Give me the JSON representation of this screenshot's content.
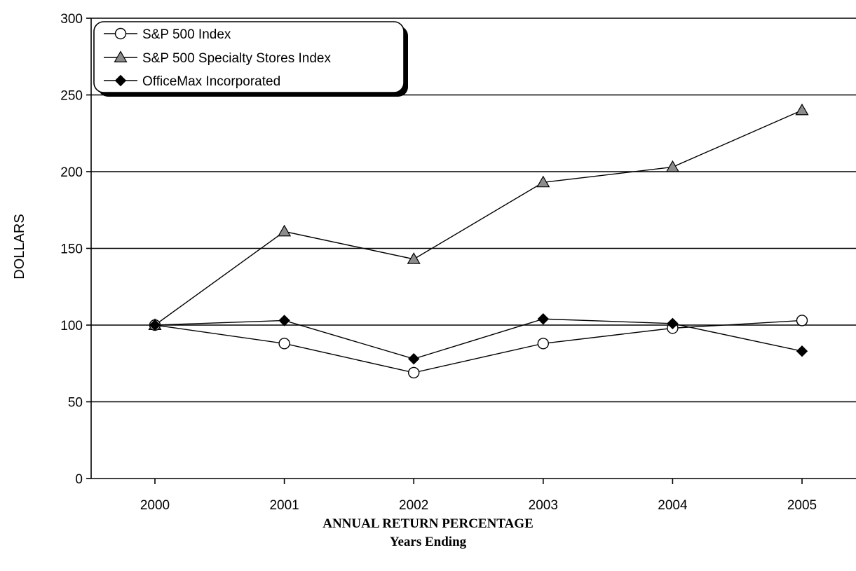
{
  "chart_data": {
    "type": "line",
    "x": [
      "2000",
      "2001",
      "2002",
      "2003",
      "2004",
      "2005"
    ],
    "ylabel": "DOLLARS",
    "xlabel": "ANNUAL RETURN PERCENTAGE",
    "subtitle": "Years Ending",
    "ylim": [
      0,
      300
    ],
    "yticks": [
      0,
      50,
      100,
      150,
      200,
      250,
      300
    ],
    "grid": "horizontal",
    "legend_position": "top-left",
    "series": [
      {
        "name": "S&P 500 Index",
        "marker": "open-circle",
        "values": [
          100,
          88,
          69,
          88,
          98,
          103
        ]
      },
      {
        "name": "S&P 500 Specialty Stores Index",
        "marker": "gray-triangle",
        "values": [
          100,
          161,
          143,
          193,
          203,
          240
        ]
      },
      {
        "name": "OfficeMax Incorporated",
        "marker": "black-diamond",
        "values": [
          100,
          103,
          78,
          104,
          101,
          83
        ]
      }
    ]
  },
  "colors": {
    "line": "#000000",
    "triangle_fill": "#8c8c8c",
    "circle_fill": "#ffffff",
    "diamond_fill": "#000000"
  }
}
